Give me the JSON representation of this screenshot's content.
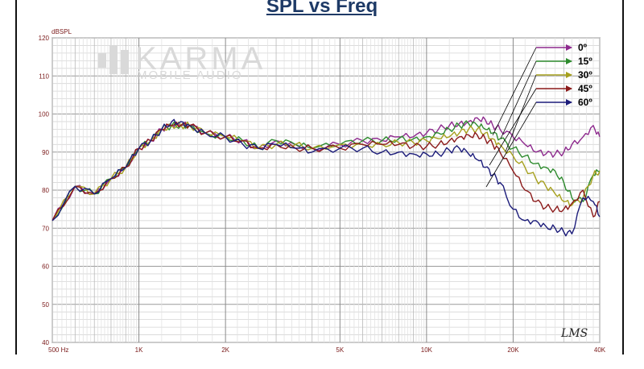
{
  "chart_data": {
    "type": "line",
    "title": "SPL vs Freq",
    "ylabel": "dBSPL",
    "xlabel": "",
    "x_scale": "log",
    "xlim": [
      500,
      40000
    ],
    "ylim": [
      40,
      120
    ],
    "grid": true,
    "y_ticks": [
      "120",
      "110",
      "100",
      "90",
      "80",
      "70",
      "60",
      "50",
      "40"
    ],
    "x_ticks": [
      {
        "value": 500,
        "label": "500  Hz"
      },
      {
        "value": 1000,
        "label": "1K"
      },
      {
        "value": 2000,
        "label": "2K"
      },
      {
        "value": 5000,
        "label": "5K"
      },
      {
        "value": 10000,
        "label": "10K"
      },
      {
        "value": 20000,
        "label": "20K"
      },
      {
        "value": 40000,
        "label": "40K"
      }
    ],
    "legend_position": "top-right",
    "x": [
      500,
      600,
      700,
      800,
      900,
      1000,
      1100,
      1200,
      1300,
      1400,
      1500,
      1700,
      2000,
      2300,
      2600,
      3000,
      3500,
      4000,
      5000,
      6000,
      7000,
      8000,
      9000,
      10000,
      11000,
      12000,
      13000,
      14000,
      15000,
      16000,
      17000,
      18000,
      20000,
      22000,
      24000,
      26000,
      28000,
      30000,
      32000,
      35000,
      38000,
      40000
    ],
    "series": [
      {
        "name": "0º",
        "color": "#8e2a8e",
        "values": [
          72,
          81,
          79,
          83,
          86,
          91,
          93,
          96,
          97,
          97,
          97,
          95,
          94,
          93,
          91,
          93,
          92,
          91,
          92,
          93,
          93,
          94,
          94,
          95,
          96,
          97,
          97.5,
          98,
          99,
          98.5,
          97,
          96,
          94,
          92,
          90,
          89.5,
          89.5,
          90,
          92,
          94,
          97,
          94
        ]
      },
      {
        "name": "15º",
        "color": "#2e8b2e",
        "values": [
          72,
          81,
          79,
          83,
          86,
          91,
          93,
          96,
          97,
          97,
          97,
          95,
          94,
          93,
          91,
          93,
          92,
          91,
          92,
          93,
          93,
          93.5,
          93.5,
          94,
          95,
          96,
          97,
          97.5,
          97,
          96,
          95,
          93.5,
          91,
          89,
          87,
          86,
          85,
          82,
          78,
          77,
          84,
          85
        ]
      },
      {
        "name": "30º",
        "color": "#a6a01e",
        "values": [
          72,
          81,
          79,
          83,
          86,
          91,
          93,
          96,
          97,
          97,
          97,
          95,
          94,
          93,
          91,
          92,
          92,
          91,
          92,
          92,
          92,
          92.5,
          92.5,
          93,
          93.5,
          94,
          95,
          96,
          96,
          95,
          93.5,
          92,
          89,
          86,
          83,
          81,
          79,
          77,
          76,
          78,
          84,
          85
        ]
      },
      {
        "name": "45º",
        "color": "#8b1a1a",
        "values": [
          72,
          81,
          79,
          83,
          86,
          91,
          93,
          96,
          97,
          97,
          97,
          95,
          94,
          93,
          91,
          92,
          91,
          91,
          91,
          92,
          92,
          92,
          91.5,
          91.5,
          92,
          93,
          94,
          94.5,
          94.5,
          93.5,
          92,
          90,
          85,
          80,
          77,
          75.5,
          75,
          75,
          76.5,
          80,
          73,
          77
        ]
      },
      {
        "name": "60º",
        "color": "#1c1c7a",
        "values": [
          72,
          81,
          79,
          83,
          86,
          91,
          93,
          96,
          98,
          98,
          97,
          95,
          94,
          92,
          91,
          92,
          91,
          90,
          91,
          91,
          90,
          90,
          89.5,
          89.5,
          89.5,
          90.5,
          91,
          89.5,
          88,
          86,
          84,
          82,
          75,
          72,
          72,
          70.5,
          70,
          69,
          68.5,
          78,
          77,
          73
        ]
      }
    ]
  },
  "watermark": {
    "brand": "KARMA",
    "sub": "MOBILE AUDIO"
  },
  "signature": "LMS"
}
